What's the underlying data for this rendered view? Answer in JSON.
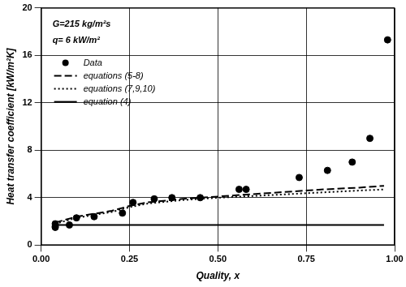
{
  "chart_data": {
    "type": "scatter",
    "annotations": [
      "G=215 kg/m²s",
      "q= 6 kW/m²"
    ],
    "x_label": "Quality, x",
    "y_label": "Heat transfer coefficient [kW/m²K]",
    "xlim": [
      0,
      1
    ],
    "xticks": [
      {
        "value": 0,
        "label": "0.00"
      },
      {
        "value": 0.25,
        "label": "0.25"
      },
      {
        "value": 0.5,
        "label": "0.50"
      },
      {
        "value": 0.75,
        "label": "0.75"
      },
      {
        "value": 1,
        "label": "1.00"
      }
    ],
    "ylim": [
      0,
      20
    ],
    "yticks": [
      0,
      4,
      8,
      12,
      16,
      20
    ],
    "grid": true,
    "legend": "upper left",
    "series": [
      {
        "name": "Data",
        "type": "scatter",
        "marker": "circle",
        "color": "#000000",
        "x": [
          0.04,
          0.04,
          0.04,
          0.08,
          0.1,
          0.15,
          0.23,
          0.26,
          0.32,
          0.37,
          0.45,
          0.56,
          0.58,
          0.73,
          0.81,
          0.88,
          0.93,
          0.98
        ],
        "values": [
          1.5,
          1.6,
          1.8,
          1.7,
          2.3,
          2.4,
          2.7,
          3.6,
          3.9,
          4.0,
          4.0,
          4.7,
          4.7,
          5.7,
          6.3,
          7.0,
          9.0,
          17.3
        ]
      },
      {
        "name": "equations (5-8)",
        "type": "line",
        "line_style": "dashed",
        "color": "#000000",
        "x": [
          0.04,
          0.1,
          0.2,
          0.25,
          0.3,
          0.4,
          0.5,
          0.6,
          0.7,
          0.8,
          0.9,
          0.97
        ],
        "values": [
          1.9,
          2.4,
          2.9,
          3.3,
          3.6,
          3.9,
          4.1,
          4.3,
          4.5,
          4.7,
          4.85,
          5.0
        ]
      },
      {
        "name": "equations (7,9,10)",
        "type": "line",
        "line_style": "dotted",
        "color": "#000000",
        "x": [
          0.04,
          0.1,
          0.2,
          0.25,
          0.3,
          0.4,
          0.5,
          0.6,
          0.7,
          0.8,
          0.9,
          0.97
        ],
        "values": [
          1.8,
          2.3,
          2.8,
          3.2,
          3.5,
          3.8,
          4.0,
          4.15,
          4.3,
          4.45,
          4.6,
          4.7
        ]
      },
      {
        "name": "equation (4)",
        "type": "line",
        "line_style": "solid",
        "color": "#000000",
        "x": [
          0.04,
          0.97
        ],
        "values": [
          1.7,
          1.7
        ]
      }
    ]
  }
}
